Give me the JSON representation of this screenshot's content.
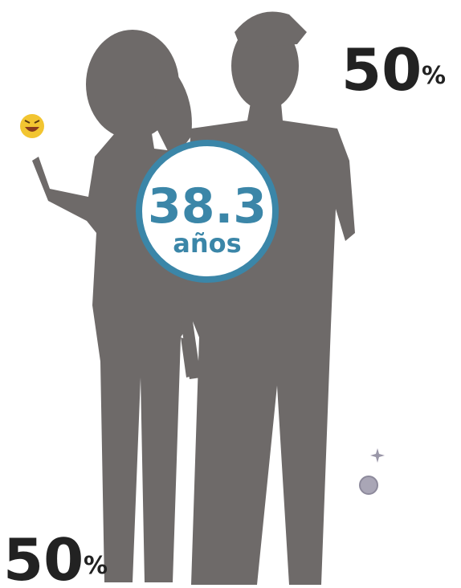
{
  "top_share": {
    "value": "50",
    "unit": "%"
  },
  "average_age": {
    "value": "38.3",
    "unit": "años"
  },
  "bottom_share": {
    "value": "50",
    "unit": "%"
  }
}
